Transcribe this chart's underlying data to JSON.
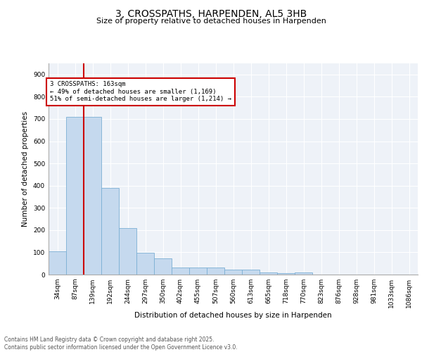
{
  "title_line1": "3, CROSSPATHS, HARPENDEN, AL5 3HB",
  "title_line2": "Size of property relative to detached houses in Harpenden",
  "xlabel": "Distribution of detached houses by size in Harpenden",
  "ylabel": "Number of detached properties",
  "bar_values": [
    103,
    710,
    710,
    390,
    210,
    98,
    72,
    32,
    33,
    33,
    22,
    22,
    8,
    6,
    8,
    0,
    0,
    0,
    0,
    0,
    0
  ],
  "categories": [
    "34sqm",
    "87sqm",
    "139sqm",
    "192sqm",
    "244sqm",
    "297sqm",
    "350sqm",
    "402sqm",
    "455sqm",
    "507sqm",
    "560sqm",
    "613sqm",
    "665sqm",
    "718sqm",
    "770sqm",
    "823sqm",
    "876sqm",
    "928sqm",
    "981sqm",
    "1033sqm",
    "1086sqm"
  ],
  "bar_color": "#c5d9ee",
  "bar_edge_color": "#7bafd4",
  "vline_x": 2.0,
  "vline_color": "#cc0000",
  "annotation_text": "3 CROSSPATHS: 163sqm\n← 49% of detached houses are smaller (1,169)\n51% of semi-detached houses are larger (1,214) →",
  "annotation_box_color": "#cc0000",
  "ylim": [
    0,
    950
  ],
  "yticks": [
    0,
    100,
    200,
    300,
    400,
    500,
    600,
    700,
    800,
    900
  ],
  "background_color": "#eef2f8",
  "grid_color": "#ffffff",
  "footer_text": "Contains HM Land Registry data © Crown copyright and database right 2025.\nContains public sector information licensed under the Open Government Licence v3.0.",
  "title_fontsize": 10,
  "subtitle_fontsize": 8,
  "axis_label_fontsize": 7.5,
  "tick_fontsize": 6.5,
  "footer_fontsize": 5.5
}
